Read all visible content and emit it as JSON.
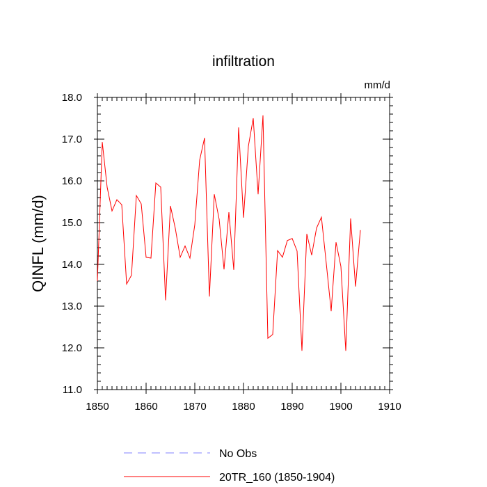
{
  "chart_data": {
    "type": "line",
    "title": "infiltration",
    "units_label": "mm/d",
    "xlabel": "",
    "ylabel": "QINFL  (mm/d)",
    "xlim": [
      1850,
      1910
    ],
    "ylim": [
      11.0,
      18.0
    ],
    "x_ticks": [
      1850,
      1860,
      1870,
      1880,
      1890,
      1900,
      1910
    ],
    "y_ticks": [
      "11.0",
      "12.0",
      "13.0",
      "14.0",
      "15.0",
      "16.0",
      "17.0",
      "18.0"
    ],
    "x_minor_step": 1,
    "y_minor_step": 0.2,
    "series": [
      {
        "name": "No Obs",
        "color": "#8080ff",
        "dash": "dashed",
        "x": [],
        "values": []
      },
      {
        "name": "20TR_160 (1850-1904)",
        "color": "#ff0000",
        "dash": "solid",
        "x": [
          1850,
          1851,
          1852,
          1853,
          1854,
          1855,
          1856,
          1857,
          1858,
          1859,
          1860,
          1861,
          1862,
          1863,
          1864,
          1865,
          1866,
          1867,
          1868,
          1869,
          1870,
          1871,
          1872,
          1873,
          1874,
          1875,
          1876,
          1877,
          1878,
          1879,
          1880,
          1881,
          1882,
          1883,
          1884,
          1885,
          1886,
          1887,
          1888,
          1889,
          1890,
          1891,
          1892,
          1893,
          1894,
          1895,
          1896,
          1897,
          1898,
          1899,
          1900,
          1901,
          1902,
          1903,
          1904
        ],
        "values": [
          13.6,
          16.93,
          15.85,
          15.28,
          15.55,
          15.43,
          13.53,
          13.74,
          15.65,
          15.45,
          14.17,
          14.15,
          15.95,
          15.85,
          13.14,
          15.4,
          14.86,
          14.17,
          14.44,
          14.15,
          14.95,
          16.5,
          17.03,
          13.23,
          15.68,
          15.08,
          13.88,
          15.25,
          13.87,
          17.28,
          15.12,
          16.83,
          17.5,
          15.68,
          17.57,
          12.23,
          12.32,
          14.33,
          14.17,
          14.57,
          14.62,
          14.32,
          11.93,
          14.73,
          14.22,
          14.87,
          15.13,
          14.02,
          12.88,
          14.53,
          13.95,
          11.93,
          15.1,
          13.47,
          14.82
        ]
      }
    ],
    "legend": [
      {
        "label": "No Obs",
        "color": "#8080ff",
        "dash": "dashed"
      },
      {
        "label": "20TR_160 (1850-1904)",
        "color": "#ff0000",
        "dash": "solid"
      }
    ]
  }
}
